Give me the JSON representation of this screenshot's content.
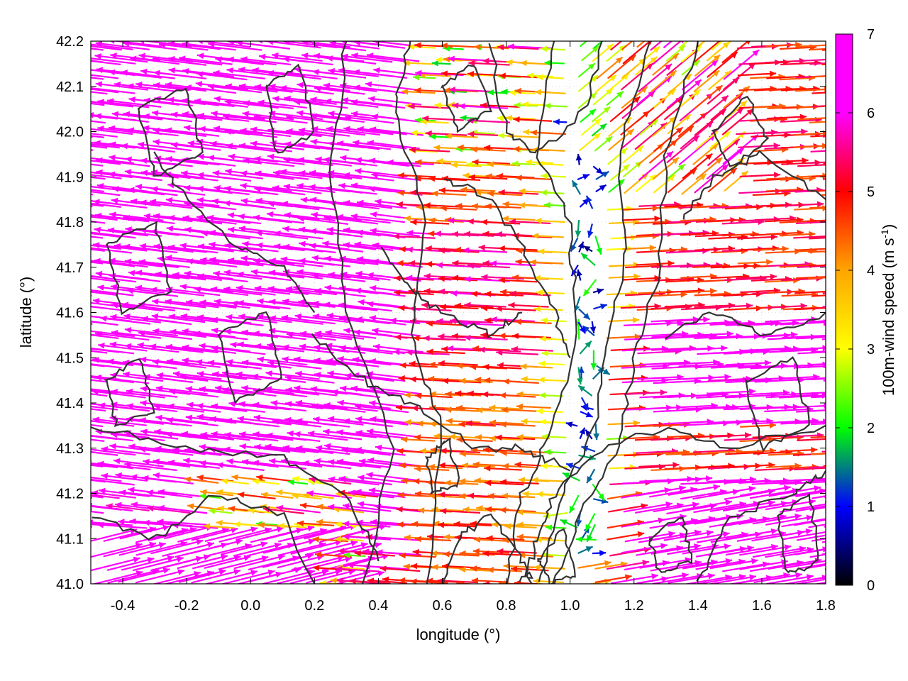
{
  "chart_data": {
    "type": "quiver",
    "xlabel": "longitude (°)",
    "ylabel": "latitude (°)",
    "xlim": [
      -0.5,
      1.8
    ],
    "ylim": [
      41.0,
      42.2
    ],
    "x_ticks": [
      "-0.4",
      "-0.2",
      "0.0",
      "0.2",
      "0.4",
      "0.6",
      "0.8",
      "1.0",
      "1.2",
      "1.4",
      "1.6",
      "1.8"
    ],
    "y_ticks": [
      "41.0",
      "41.1",
      "41.2",
      "41.3",
      "41.4",
      "41.5",
      "41.6",
      "41.7",
      "41.8",
      "41.9",
      "42.0",
      "42.1",
      "42.2"
    ],
    "grid": "dotted",
    "colorbar": {
      "label": "100m-wind speed (m s-1)",
      "label_main": "100m-wind speed (m s",
      "label_sup": "-1",
      "label_end": ")",
      "range": [
        0,
        7
      ],
      "ticks": [
        "0",
        "1",
        "2",
        "3",
        "4",
        "5",
        "6",
        "7"
      ],
      "palette": [
        "#000000",
        "#0000ff",
        "#00ff00",
        "#ffff00",
        "#ffa500",
        "#ff0000",
        "#ff00ff"
      ]
    },
    "wind_field": {
      "description_grid_step_deg": [
        0.05,
        0.04
      ],
      "regimes": [
        {
          "region": "west of 0.6°",
          "direction": "westward (toward -x)",
          "speed_ms": 7
        },
        {
          "region": "0.6°–1.0° middle latitudes",
          "direction": "westward",
          "speed_ms": 5.5
        },
        {
          "region": "east of 1.1°",
          "direction": "eastward",
          "speed_ms": 6
        },
        {
          "region": "around 1.05°",
          "direction": "weak / variable",
          "speed_ms": 1
        }
      ]
    },
    "contours": {
      "color": "#333333",
      "meaning": "terrain elevation isolines"
    }
  }
}
